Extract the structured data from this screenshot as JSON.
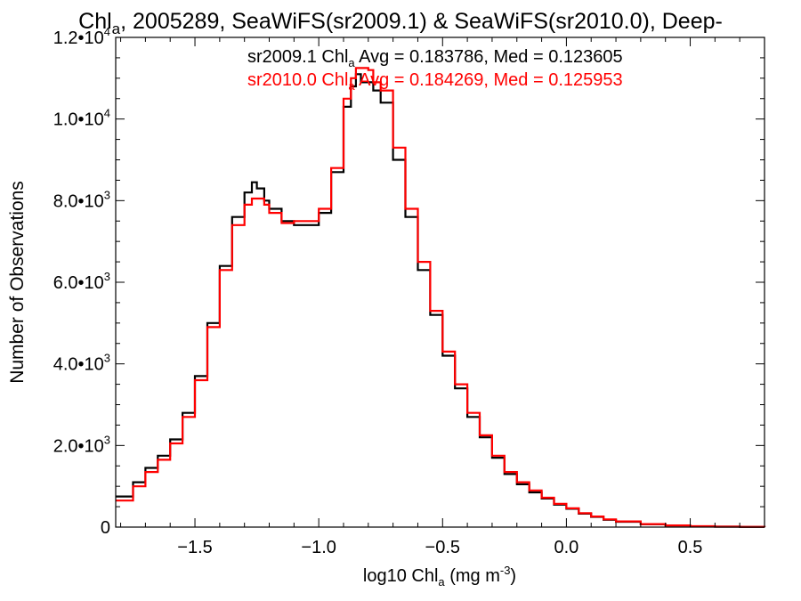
{
  "chart_data": {
    "type": "line",
    "title_parts": [
      "Chl",
      "a",
      ", 2005289, SeaWiFS(sr2009.1) & SeaWiFS(sr2010.0), Deep-"
    ],
    "xlabel_parts": [
      "log10 Chl",
      "a",
      " (mg m",
      "-3",
      ")"
    ],
    "ylabel": "Number of Observations",
    "xlim": [
      -1.82,
      0.8
    ],
    "ylim": [
      0,
      12000
    ],
    "x_ticks": [
      {
        "value": -1.5,
        "label": "−1.5"
      },
      {
        "value": -1.0,
        "label": "−1.0"
      },
      {
        "value": -0.5,
        "label": "−0.5"
      },
      {
        "value": 0.0,
        "label": "0.0"
      },
      {
        "value": 0.5,
        "label": "0.5"
      }
    ],
    "y_ticks": [
      {
        "value": 0,
        "mantissa": "0",
        "exp": ""
      },
      {
        "value": 2000,
        "mantissa": "2.0•10",
        "exp": "3"
      },
      {
        "value": 4000,
        "mantissa": "4.0•10",
        "exp": "3"
      },
      {
        "value": 6000,
        "mantissa": "6.0•10",
        "exp": "3"
      },
      {
        "value": 8000,
        "mantissa": "8.0•10",
        "exp": "3"
      },
      {
        "value": 10000,
        "mantissa": "1.0•10",
        "exp": "4"
      },
      {
        "value": 12000,
        "mantissa": "1.2•10",
        "exp": "4"
      }
    ],
    "stats": [
      {
        "name": "sr2009.1",
        "text_parts": [
          "sr2009.1 Chl",
          "a",
          " Avg = 0.183786, Med = 0.123605"
        ],
        "color": "#000000"
      },
      {
        "name": "sr2010.0",
        "text_parts": [
          "sr2010.0 Chl",
          "a",
          " Avg = 0.184269, Med = 0.125953"
        ],
        "color": "#ff0000"
      }
    ],
    "series": [
      {
        "name": "sr2009.1",
        "color": "#000000",
        "x": [
          -1.82,
          -1.75,
          -1.7,
          -1.65,
          -1.6,
          -1.55,
          -1.5,
          -1.45,
          -1.4,
          -1.35,
          -1.3,
          -1.27,
          -1.25,
          -1.22,
          -1.2,
          -1.15,
          -1.1,
          -1.05,
          -1.0,
          -0.95,
          -0.9,
          -0.87,
          -0.85,
          -0.83,
          -0.8,
          -0.78,
          -0.75,
          -0.7,
          -0.65,
          -0.6,
          -0.55,
          -0.5,
          -0.45,
          -0.4,
          -0.35,
          -0.3,
          -0.25,
          -0.2,
          -0.15,
          -0.1,
          -0.05,
          0.0,
          0.05,
          0.1,
          0.15,
          0.2,
          0.3,
          0.4,
          0.5,
          0.6,
          0.7,
          0.8
        ],
        "y": [
          750,
          1100,
          1450,
          1750,
          2150,
          2800,
          3700,
          5000,
          6400,
          7600,
          8200,
          8450,
          8300,
          8000,
          7800,
          7500,
          7400,
          7400,
          7700,
          8700,
          10300,
          10800,
          11100,
          10900,
          10900,
          10700,
          10400,
          9000,
          7600,
          6300,
          5200,
          4200,
          3400,
          2700,
          2200,
          1700,
          1300,
          1050,
          850,
          700,
          550,
          450,
          330,
          250,
          180,
          130,
          70,
          40,
          20,
          10,
          5,
          0
        ]
      },
      {
        "name": "sr2010.0",
        "color": "#ff0000",
        "x": [
          -1.82,
          -1.75,
          -1.7,
          -1.65,
          -1.6,
          -1.55,
          -1.5,
          -1.45,
          -1.4,
          -1.35,
          -1.3,
          -1.27,
          -1.25,
          -1.22,
          -1.2,
          -1.15,
          -1.1,
          -1.05,
          -1.0,
          -0.95,
          -0.9,
          -0.87,
          -0.85,
          -0.83,
          -0.8,
          -0.78,
          -0.75,
          -0.7,
          -0.65,
          -0.6,
          -0.55,
          -0.5,
          -0.45,
          -0.4,
          -0.35,
          -0.3,
          -0.25,
          -0.2,
          -0.15,
          -0.1,
          -0.05,
          0.0,
          0.05,
          0.1,
          0.15,
          0.2,
          0.3,
          0.4,
          0.5,
          0.6,
          0.7,
          0.8
        ],
        "y": [
          650,
          1000,
          1350,
          1650,
          2050,
          2700,
          3600,
          4900,
          6300,
          7400,
          7900,
          8050,
          8050,
          7900,
          7700,
          7450,
          7500,
          7500,
          7800,
          8800,
          10500,
          11000,
          11250,
          11250,
          11200,
          10900,
          10700,
          9300,
          7800,
          6500,
          5300,
          4300,
          3500,
          2800,
          2250,
          1750,
          1350,
          1100,
          900,
          720,
          570,
          460,
          340,
          260,
          190,
          140,
          75,
          42,
          22,
          12,
          6,
          0
        ]
      }
    ]
  }
}
